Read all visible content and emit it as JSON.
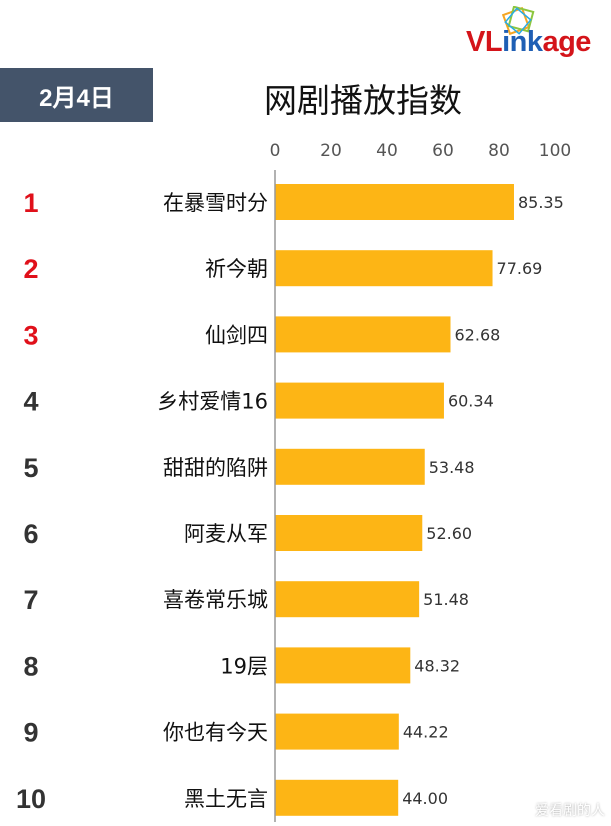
{
  "header": {
    "brand": {
      "prefix": "VL",
      "middle": "ink",
      "suffix": "age"
    },
    "date": "2月4日",
    "title": "网剧播放指数"
  },
  "colors": {
    "bar": "#fdb515",
    "rank_top": "#e0101a",
    "rank_other": "#333333",
    "badge": "#44546a",
    "brand_blue": "#1f5fb4",
    "brand_red": "#d4141a"
  },
  "chart_data": {
    "type": "bar",
    "orientation": "horizontal",
    "title": "网剧播放指数",
    "ranks": [
      "1",
      "2",
      "3",
      "4",
      "5",
      "6",
      "7",
      "8",
      "9",
      "10"
    ],
    "categories": [
      "在暴雪时分",
      "祈今朝",
      "仙剑四",
      "乡村爱情16",
      "甜甜的陷阱",
      "阿麦从军",
      "喜卷常乐城",
      "19层",
      "你也有今天",
      "黑土无言"
    ],
    "values": [
      85.35,
      77.69,
      62.68,
      60.34,
      53.48,
      52.6,
      51.48,
      48.32,
      44.22,
      44.0
    ],
    "value_labels": [
      "85.35",
      "77.69",
      "62.68",
      "60.34",
      "53.48",
      "52.60",
      "51.48",
      "48.32",
      "44.22",
      "44.00"
    ],
    "xlim": [
      0,
      100
    ],
    "xticks": [
      "0",
      "20",
      "40",
      "60",
      "80",
      "100"
    ],
    "grid": false,
    "axis_position": "top"
  },
  "watermark": "爱看剧的人"
}
